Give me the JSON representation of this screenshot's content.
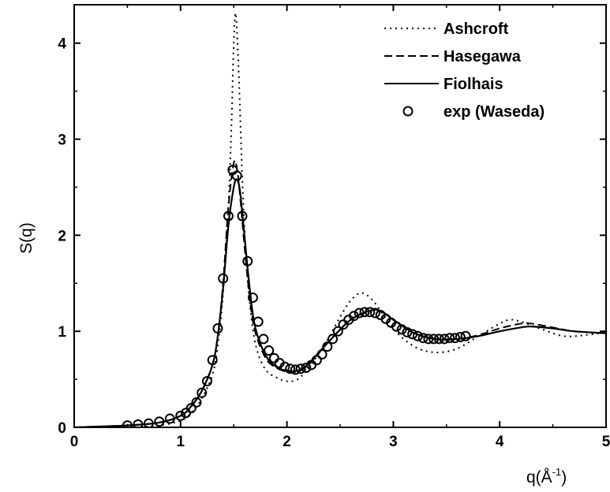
{
  "chart_data": {
    "type": "line",
    "xlabel": "q(Å",
    "xlabel_sup": "-1",
    "xlabel_close": ")",
    "ylabel": "S(q)",
    "xlim": [
      0,
      5
    ],
    "ylim": [
      0,
      4.4
    ],
    "x_ticks": [
      0,
      1,
      2,
      3,
      4,
      5
    ],
    "y_ticks": [
      0,
      1,
      2,
      3,
      4
    ],
    "x_tick_labels": [
      "0",
      "1",
      "2",
      "3",
      "4",
      "5"
    ],
    "y_tick_labels": [
      "0",
      "1",
      "2",
      "3",
      "4"
    ],
    "grid": false,
    "legend_position": "top-right",
    "series": [
      {
        "name": "Ashcroft",
        "style": "dotted",
        "x": [
          0,
          0.5,
          0.8,
          1.0,
          1.1,
          1.2,
          1.3,
          1.35,
          1.4,
          1.45,
          1.48,
          1.5,
          1.52,
          1.55,
          1.58,
          1.62,
          1.67,
          1.72,
          1.8,
          1.9,
          2.0,
          2.1,
          2.2,
          2.35,
          2.5,
          2.6,
          2.7,
          2.8,
          2.9,
          3.0,
          3.2,
          3.4,
          3.6,
          3.8,
          4.0,
          4.1,
          4.2,
          4.4,
          4.6,
          4.8,
          5.0
        ],
        "y": [
          0.0,
          0.0,
          0.02,
          0.07,
          0.15,
          0.3,
          0.55,
          0.85,
          1.4,
          2.3,
          3.2,
          4.0,
          4.3,
          3.6,
          2.6,
          1.7,
          1.1,
          0.8,
          0.6,
          0.52,
          0.48,
          0.5,
          0.62,
          0.85,
          1.15,
          1.32,
          1.4,
          1.33,
          1.18,
          1.02,
          0.84,
          0.78,
          0.82,
          0.95,
          1.08,
          1.12,
          1.1,
          1.02,
          0.95,
          0.96,
          0.99
        ]
      },
      {
        "name": "Hasegawa",
        "style": "dashed",
        "x": [
          0,
          0.5,
          0.8,
          1.0,
          1.1,
          1.2,
          1.3,
          1.35,
          1.4,
          1.45,
          1.5,
          1.53,
          1.56,
          1.6,
          1.65,
          1.7,
          1.8,
          1.9,
          2.0,
          2.1,
          2.2,
          2.4,
          2.6,
          2.8,
          2.9,
          3.0,
          3.2,
          3.4,
          3.6,
          3.8,
          4.0,
          4.2,
          4.3,
          4.5,
          4.7,
          5.0
        ],
        "y": [
          0.0,
          0.02,
          0.05,
          0.12,
          0.22,
          0.38,
          0.65,
          0.95,
          1.5,
          2.3,
          2.75,
          2.7,
          2.4,
          1.9,
          1.35,
          1.0,
          0.72,
          0.62,
          0.58,
          0.58,
          0.65,
          0.9,
          1.12,
          1.22,
          1.2,
          1.12,
          0.98,
          0.92,
          0.92,
          0.96,
          1.03,
          1.08,
          1.08,
          1.04,
          1.0,
          0.98
        ]
      },
      {
        "name": "Fiolhais",
        "style": "solid",
        "x": [
          0,
          0.5,
          0.8,
          1.0,
          1.1,
          1.2,
          1.3,
          1.35,
          1.4,
          1.45,
          1.5,
          1.53,
          1.56,
          1.6,
          1.65,
          1.7,
          1.8,
          1.9,
          2.0,
          2.1,
          2.2,
          2.4,
          2.6,
          2.8,
          2.9,
          3.0,
          3.2,
          3.4,
          3.6,
          3.8,
          4.0,
          4.2,
          4.3,
          4.5,
          4.7,
          5.0
        ],
        "y": [
          0.0,
          0.02,
          0.05,
          0.12,
          0.22,
          0.38,
          0.65,
          0.95,
          1.45,
          2.1,
          2.5,
          2.58,
          2.45,
          2.0,
          1.45,
          1.05,
          0.75,
          0.63,
          0.59,
          0.59,
          0.66,
          0.9,
          1.12,
          1.22,
          1.2,
          1.12,
          0.98,
          0.92,
          0.92,
          0.95,
          1.0,
          1.04,
          1.05,
          1.03,
          1.0,
          0.98
        ]
      },
      {
        "name": "exp (Waseda)",
        "style": "circles",
        "x": [
          0.5,
          0.6,
          0.7,
          0.8,
          0.9,
          1.0,
          1.05,
          1.1,
          1.15,
          1.2,
          1.25,
          1.3,
          1.35,
          1.4,
          1.45,
          1.49,
          1.53,
          1.58,
          1.63,
          1.68,
          1.73,
          1.78,
          1.83,
          1.88,
          1.93,
          1.98,
          2.03,
          2.08,
          2.13,
          2.18,
          2.23,
          2.28,
          2.33,
          2.38,
          2.43,
          2.48,
          2.53,
          2.58,
          2.63,
          2.68,
          2.73,
          2.78,
          2.83,
          2.88,
          2.93,
          2.98,
          3.03,
          3.08,
          3.13,
          3.18,
          3.23,
          3.28,
          3.33,
          3.38,
          3.43,
          3.48,
          3.53,
          3.58,
          3.63,
          3.68
        ],
        "y": [
          0.02,
          0.03,
          0.04,
          0.06,
          0.09,
          0.12,
          0.15,
          0.2,
          0.26,
          0.36,
          0.48,
          0.7,
          1.03,
          1.55,
          2.2,
          2.68,
          2.62,
          2.2,
          1.73,
          1.35,
          1.1,
          0.92,
          0.8,
          0.72,
          0.67,
          0.63,
          0.61,
          0.6,
          0.61,
          0.62,
          0.65,
          0.7,
          0.76,
          0.84,
          0.92,
          1.0,
          1.07,
          1.12,
          1.16,
          1.19,
          1.2,
          1.2,
          1.19,
          1.17,
          1.13,
          1.09,
          1.05,
          1.02,
          0.99,
          0.97,
          0.95,
          0.93,
          0.92,
          0.92,
          0.92,
          0.92,
          0.93,
          0.93,
          0.94,
          0.95
        ]
      }
    ]
  }
}
